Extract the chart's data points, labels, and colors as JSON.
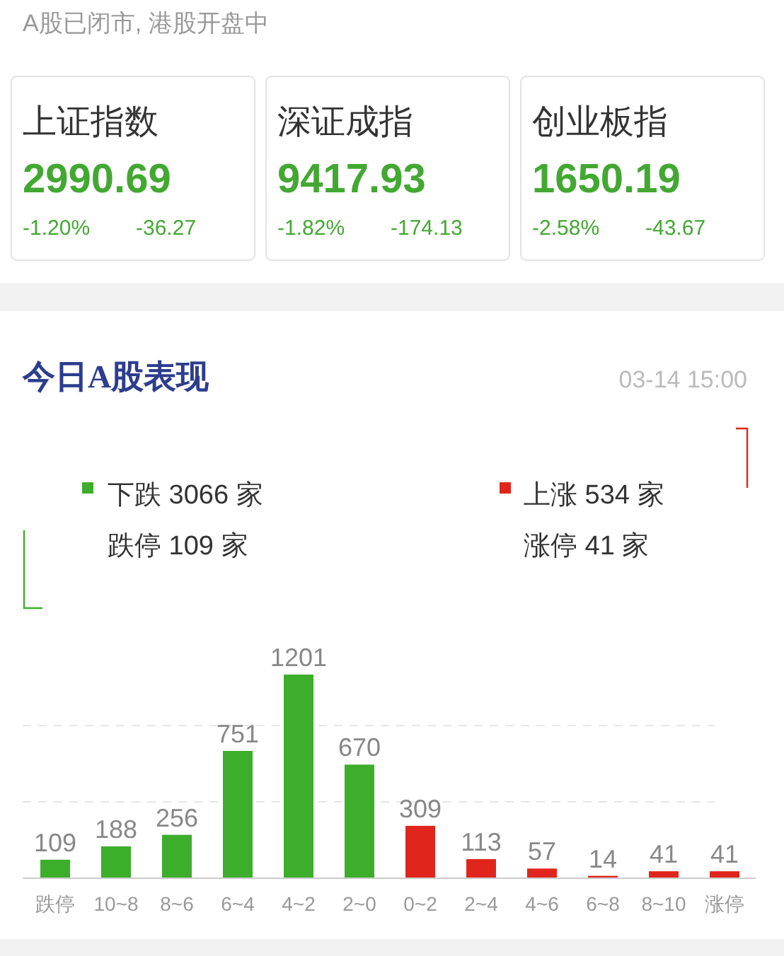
{
  "chart_data": {
    "type": "bar",
    "title": "今日A股表现",
    "subtitle": "03-14 15:00",
    "categories": [
      "跌停",
      "10~8",
      "8~6",
      "6~4",
      "4~2",
      "2~0",
      "0~2",
      "2~4",
      "4~6",
      "6~8",
      "8~10",
      "涨停"
    ],
    "values": [
      109,
      188,
      256,
      751,
      1201,
      670,
      309,
      113,
      57,
      14,
      41,
      41
    ],
    "colors": [
      "#3dae2b",
      "#3dae2b",
      "#3dae2b",
      "#3dae2b",
      "#3dae2b",
      "#3dae2b",
      "#e0261c",
      "#e0261c",
      "#e0261c",
      "#e0261c",
      "#e0261c",
      "#e0261c"
    ],
    "data_labels": true,
    "ref_lines": [
      {
        "axis": "y",
        "value": 450,
        "color": "#e6e6e6",
        "line_style": "dashed"
      },
      {
        "axis": "y",
        "value": 900,
        "color": "#e6e6e6",
        "line_style": "dashed"
      }
    ],
    "annotations": [
      "A股已闭市, 港股开盘中",
      "上证指数",
      "2990.69",
      "-1.20%",
      "-36.27",
      "深证成指",
      "9417.93",
      "-1.82%",
      "-174.13",
      "创业板指",
      "1650.19",
      "-2.58%",
      "-43.67",
      "下跌 3066 家",
      "跌停 109 家",
      "上涨 534 家",
      "涨停 41 家"
    ]
  }
}
